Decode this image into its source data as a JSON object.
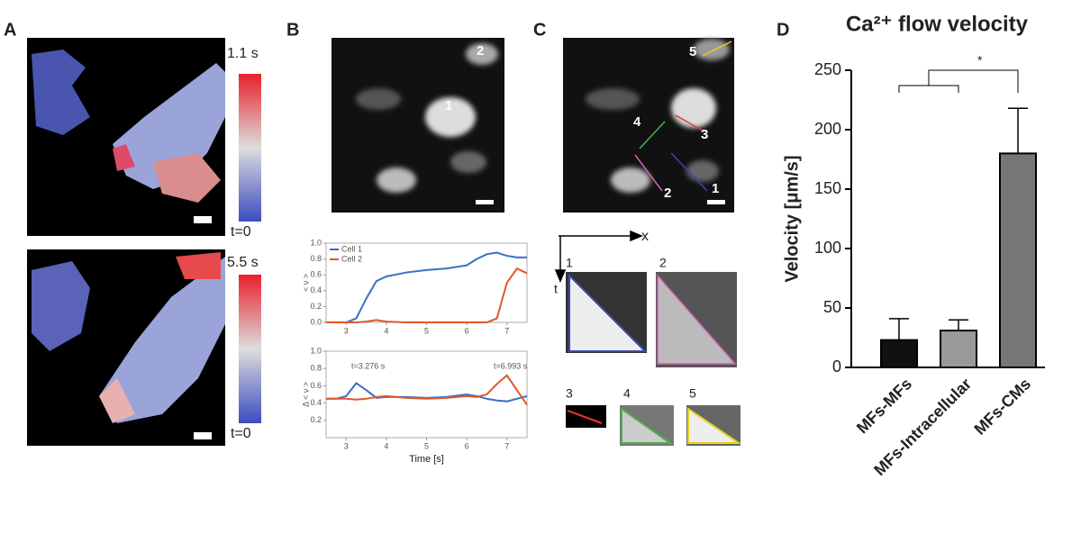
{
  "panels": {
    "a": {
      "label": "A",
      "colorbar_top": [
        "1.1 s",
        "5.5 s"
      ],
      "colorbar_bottom": [
        "t=0",
        "t=0"
      ]
    },
    "b": {
      "label": "B",
      "cell_numbers": [
        "2",
        "1"
      ]
    },
    "c": {
      "label": "C",
      "line_numbers": [
        "5",
        "4",
        "3",
        "2",
        "1"
      ],
      "axis_x": "x",
      "axis_t": "t",
      "kymograph_labels": [
        "1",
        "2",
        "3",
        "4",
        "5"
      ]
    },
    "d": {
      "label": "D"
    }
  },
  "chart_data": [
    {
      "type": "line",
      "ylabel": "< ν >",
      "x": [
        2.5,
        2.75,
        3,
        3.25,
        3.5,
        3.75,
        4,
        4.5,
        5,
        5.5,
        6,
        6.25,
        6.5,
        6.75,
        7,
        7.25,
        7.5
      ],
      "xlim": [
        2.5,
        7.5
      ],
      "xticks": [
        3,
        4,
        5,
        6,
        7
      ],
      "ylim": [
        0,
        1
      ],
      "yticks": [
        {
          "value": 0,
          "label": "0.0"
        },
        0.2,
        0.4,
        0.6,
        0.8,
        {
          "value": 1,
          "label": "1.0"
        }
      ],
      "legend": "upper left",
      "series": [
        {
          "name": "Cell 1",
          "color": "#3a6fc4",
          "values": [
            0,
            0,
            0,
            0.05,
            0.3,
            0.52,
            0.58,
            0.63,
            0.66,
            0.68,
            0.72,
            0.8,
            0.86,
            0.88,
            0.84,
            0.82,
            0.82
          ]
        },
        {
          "name": "Cell 2",
          "color": "#e0572b",
          "values": [
            0,
            0,
            0,
            0,
            0.01,
            0.03,
            0.01,
            0,
            0,
            0,
            0,
            0,
            0,
            0.05,
            0.5,
            0.68,
            0.62
          ]
        }
      ]
    },
    {
      "type": "line",
      "ylabel": "Δ < ν >",
      "xlabel": "Time [s]",
      "x": [
        2.5,
        2.75,
        3,
        3.25,
        3.5,
        3.75,
        4,
        4.5,
        5,
        5.5,
        6,
        6.25,
        6.5,
        6.75,
        7,
        7.25,
        7.5
      ],
      "xlim": [
        2.5,
        7.5
      ],
      "xticks": [
        3,
        4,
        5,
        6,
        7
      ],
      "ylim": [
        0,
        1
      ],
      "yticks": [
        0.2,
        0.4,
        0.6,
        0.8,
        {
          "value": 1,
          "label": "1.0"
        }
      ],
      "annotations": [
        "t=3.276 s",
        "t=6.993 s"
      ],
      "series": [
        {
          "color": "#3a6fc4",
          "values": [
            0.45,
            0.45,
            0.48,
            0.63,
            0.55,
            0.46,
            0.47,
            0.47,
            0.46,
            0.47,
            0.5,
            0.48,
            0.45,
            0.43,
            0.42,
            0.45,
            0.48
          ]
        },
        {
          "color": "#e0572b",
          "values": [
            0.45,
            0.45,
            0.45,
            0.44,
            0.45,
            0.47,
            0.48,
            0.46,
            0.45,
            0.46,
            0.48,
            0.47,
            0.5,
            0.62,
            0.72,
            0.55,
            0.38
          ]
        }
      ]
    },
    {
      "type": "bar",
      "title": "Ca²⁺ flow velocity",
      "ylabel": "Velocity [μm/s]",
      "categories": [
        "MFs-MFs",
        "MFs-Intracellular",
        "MFs-CMs"
      ],
      "values": [
        23,
        31,
        180
      ],
      "errors": [
        18,
        9,
        38
      ],
      "colors": [
        "#111111",
        "#9a9a9a",
        "#777777"
      ],
      "ylim": [
        0,
        250
      ],
      "yticks": [
        0,
        50,
        100,
        150,
        200,
        250
      ],
      "annotations": [
        "*"
      ]
    }
  ]
}
